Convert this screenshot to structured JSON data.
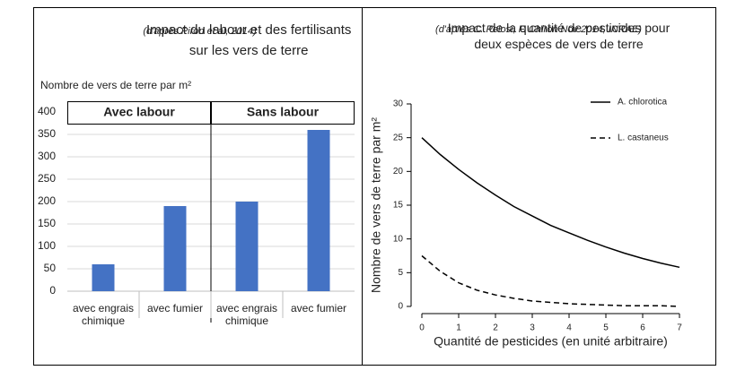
{
  "chart_data": [
    {
      "type": "bar",
      "title": "Impact du labour et des fertilisants sur les vers de terre",
      "source": "(d'après Piron et al, 2014)",
      "y_label": "Nombre de vers de terre par m²",
      "groups": [
        "Avec labour",
        "Sans labour"
      ],
      "categories": [
        "avec engrais chimique",
        "avec fumier",
        "avec engrais chimique",
        "avec fumier"
      ],
      "values": [
        60,
        190,
        200,
        360
      ],
      "color": "#4472c4",
      "ylim": [
        0,
        400
      ],
      "yticks": [
        0,
        50,
        100,
        150,
        200,
        250,
        300,
        350,
        400
      ],
      "grid": true
    },
    {
      "type": "line",
      "title": "Impact de la quantité de pesticides pour deux espèces de vers de terre",
      "source": "(d'après C. Pelosi, F. Chiron Nov 2014, INRAE)",
      "x_label": "Quantité de pesticides (en unité arbitraire)",
      "y_label": "Nombre de vers de terre par m²",
      "x": [
        0,
        0.5,
        1,
        1.5,
        2,
        2.5,
        3,
        3.5,
        4,
        4.5,
        5,
        5.5,
        6,
        6.5,
        7
      ],
      "series": [
        {
          "name": "A. chlorotica",
          "color": "#000000",
          "dashed": false,
          "values": [
            25,
            22.5,
            20.3,
            18.3,
            16.5,
            14.8,
            13.4,
            12.0,
            10.9,
            9.8,
            8.8,
            7.9,
            7.1,
            6.4,
            5.8
          ]
        },
        {
          "name": "L. castaneus",
          "color": "#000000",
          "dashed": true,
          "values": [
            7.5,
            5.2,
            3.5,
            2.4,
            1.7,
            1.2,
            0.8,
            0.6,
            0.4,
            0.3,
            0.2,
            0.1,
            0.1,
            0.1,
            0.0
          ]
        }
      ],
      "xlim": [
        0,
        7
      ],
      "xticks": [
        0,
        1,
        2,
        3,
        4,
        5,
        6,
        7
      ],
      "ylim": [
        0,
        30
      ],
      "yticks": [
        0,
        5,
        10,
        15,
        20,
        25,
        30
      ],
      "legend": "top-right",
      "grid": false
    }
  ]
}
